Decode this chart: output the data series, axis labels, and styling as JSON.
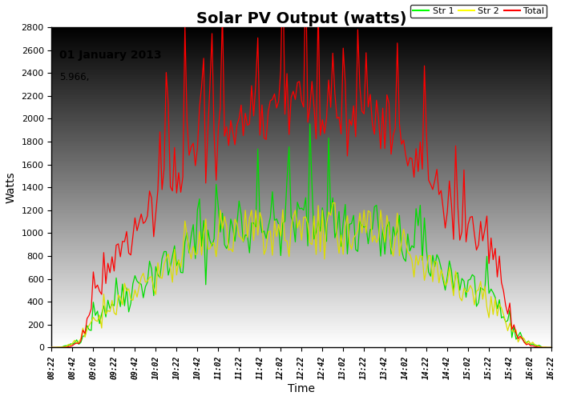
{
  "title": "Solar PV Output (watts)",
  "xlabel": "Time",
  "ylabel": "Watts",
  "date_label": "01 January 2013",
  "value_label": "5.966,",
  "ylim": [
    0,
    2800
  ],
  "yticks": [
    0,
    200,
    400,
    600,
    800,
    1000,
    1200,
    1400,
    1600,
    1800,
    2000,
    2200,
    2400,
    2600,
    2800
  ],
  "legend_labels": [
    "Str 1",
    "Str 2",
    "Total"
  ],
  "legend_colors": [
    "#00ff00",
    "#ffff00",
    "#ff0000"
  ],
  "line_colors": {
    "str1": "#00dd00",
    "str2": "#dddd00",
    "total": "#ff0000"
  },
  "title_fontsize": 14,
  "tick_labels": [
    "08:22",
    "08:42",
    "09:02",
    "09:22",
    "09:42",
    "10:02",
    "10:22",
    "10:42",
    "11:02",
    "11:22",
    "11:42",
    "12:02",
    "12:22",
    "12:42",
    "13:02",
    "13:22",
    "13:42",
    "14:02",
    "14:22",
    "14:42",
    "15:02",
    "15:22",
    "15:42",
    "16:02",
    "16:22"
  ]
}
